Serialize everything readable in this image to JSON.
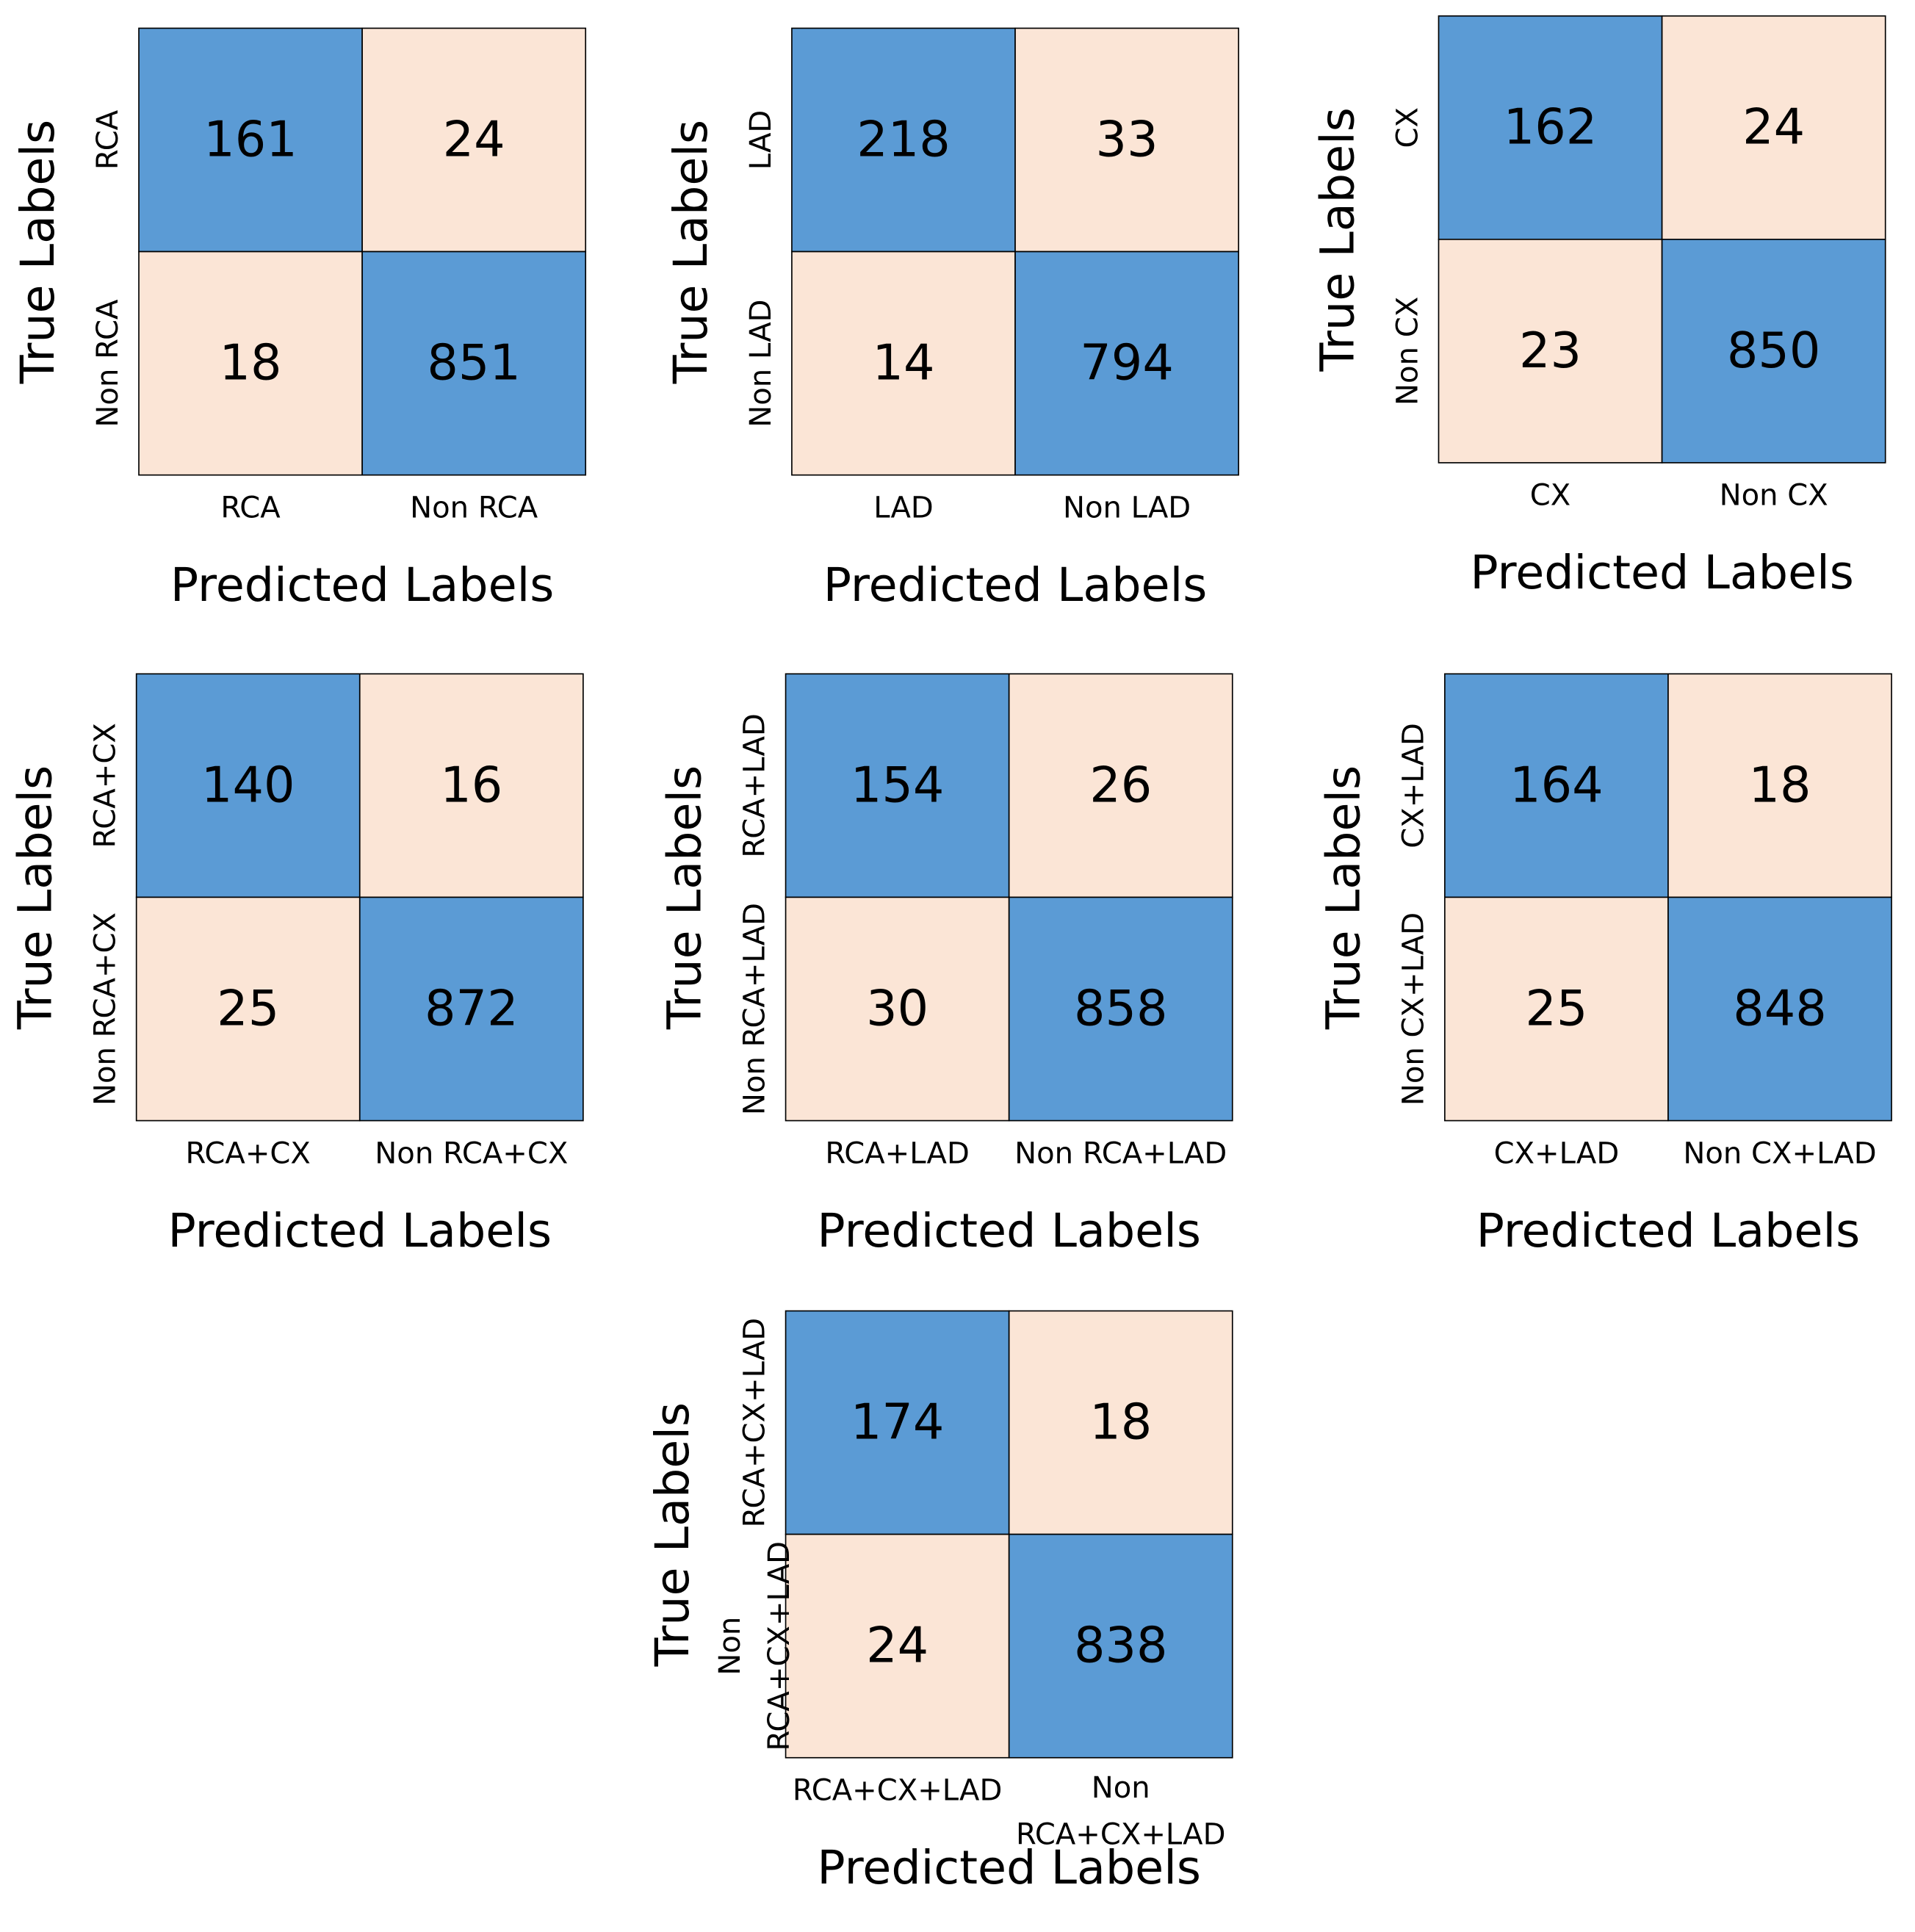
{
  "chart_data": [
    {
      "type": "heatmap",
      "x_label": "Predicted Labels",
      "y_label": "True Labels",
      "x_categories": [
        "RCA",
        "Non RCA"
      ],
      "y_categories": [
        "RCA",
        "Non RCA"
      ],
      "values": [
        [
          161,
          24
        ],
        [
          18,
          851
        ]
      ],
      "diagonal_color": "#5b9bd5",
      "off_diagonal_color": "#fbe5d6"
    },
    {
      "type": "heatmap",
      "x_label": "Predicted Labels",
      "y_label": "True Labels",
      "x_categories": [
        "LAD",
        "Non LAD"
      ],
      "y_categories": [
        "LAD",
        "Non LAD"
      ],
      "values": [
        [
          218,
          33
        ],
        [
          14,
          794
        ]
      ],
      "diagonal_color": "#5b9bd5",
      "off_diagonal_color": "#fbe5d6"
    },
    {
      "type": "heatmap",
      "x_label": "Predicted Labels",
      "y_label": "True Labels",
      "x_categories": [
        "CX",
        "Non CX"
      ],
      "y_categories": [
        "CX",
        "Non CX"
      ],
      "values": [
        [
          162,
          24
        ],
        [
          23,
          850
        ]
      ],
      "diagonal_color": "#5b9bd5",
      "off_diagonal_color": "#fbe5d6"
    },
    {
      "type": "heatmap",
      "x_label": "Predicted Labels",
      "y_label": "True Labels",
      "x_categories": [
        "RCA+CX",
        "Non RCA+CX"
      ],
      "y_categories": [
        "RCA+CX",
        "Non RCA+CX"
      ],
      "values": [
        [
          140,
          16
        ],
        [
          25,
          872
        ]
      ],
      "diagonal_color": "#5b9bd5",
      "off_diagonal_color": "#fbe5d6"
    },
    {
      "type": "heatmap",
      "x_label": "Predicted Labels",
      "y_label": "True Labels",
      "x_categories": [
        "RCA+LAD",
        "Non RCA+LAD"
      ],
      "y_categories": [
        "RCA+LAD",
        "Non RCA+LAD"
      ],
      "values": [
        [
          154,
          26
        ],
        [
          30,
          858
        ]
      ],
      "diagonal_color": "#5b9bd5",
      "off_diagonal_color": "#fbe5d6"
    },
    {
      "type": "heatmap",
      "x_label": "Predicted Labels",
      "y_label": "True Labels",
      "x_categories": [
        "CX+LAD",
        "Non CX+LAD"
      ],
      "y_categories": [
        "CX+LAD",
        "Non CX+LAD"
      ],
      "values": [
        [
          164,
          18
        ],
        [
          25,
          848
        ]
      ],
      "diagonal_color": "#5b9bd5",
      "off_diagonal_color": "#fbe5d6"
    },
    {
      "type": "heatmap",
      "x_label": "Predicted Labels",
      "y_label": "True Labels",
      "x_categories": [
        "RCA+CX+LAD",
        "Non\nRCA+CX+LAD"
      ],
      "y_categories": [
        "RCA+CX+LAD",
        "Non\nRCA+CX+LAD"
      ],
      "values": [
        [
          174,
          18
        ],
        [
          24,
          838
        ]
      ],
      "diagonal_color": "#5b9bd5",
      "off_diagonal_color": "#fbe5d6"
    }
  ]
}
